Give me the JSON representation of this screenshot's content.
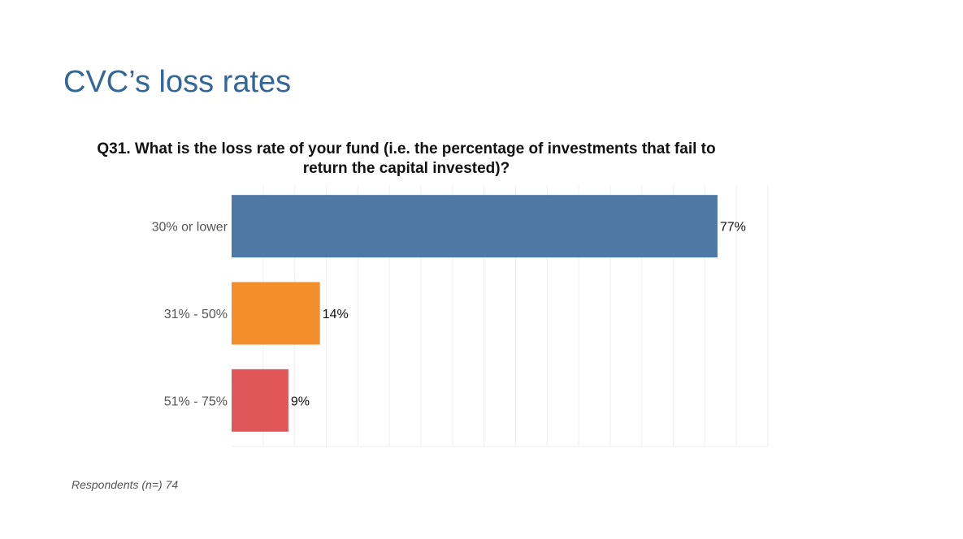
{
  "slide": {
    "title": "CVC’s loss rates",
    "footnote": "Respondents (n=) 74"
  },
  "chart_data": {
    "type": "bar",
    "orientation": "horizontal",
    "title_line1": "Q31. What is the loss rate of your fund (i.e. the percentage of investments that fail to",
    "title_line2": "return the capital invested)?",
    "categories": [
      "30% or lower",
      "31% - 50%",
      "51% - 75%"
    ],
    "values": [
      77,
      14,
      9
    ],
    "data_labels": [
      "77%",
      "14%",
      "9%"
    ],
    "xlim": [
      0,
      85
    ],
    "grid": true,
    "colors": [
      "#4e79a7",
      "#f28e2b",
      "#e15759"
    ]
  }
}
